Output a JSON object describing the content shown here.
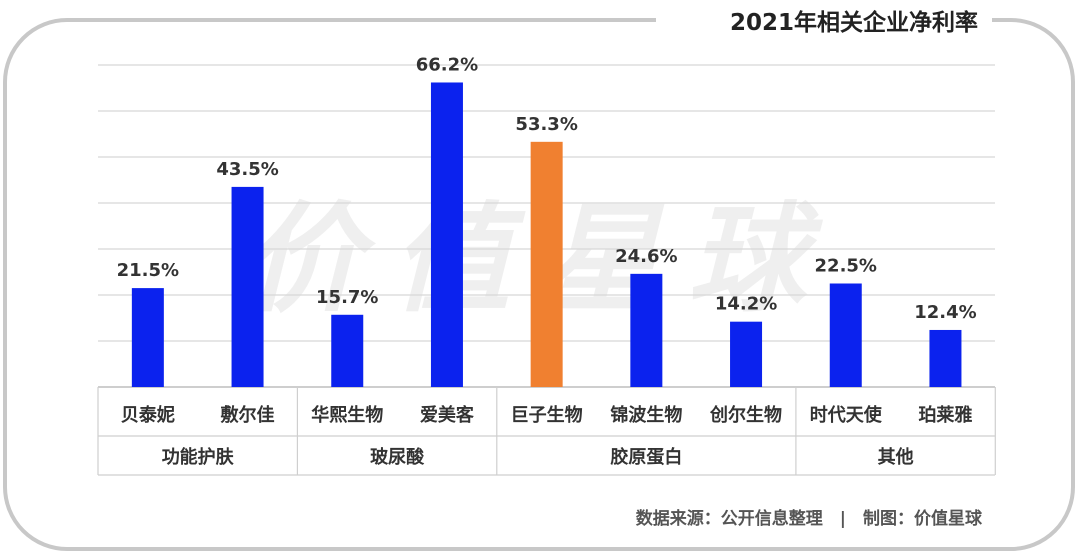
{
  "title": "2021年相关企业净利率",
  "watermark": "价值星球",
  "footer": "数据来源：公开信息整理　|　制图：价值星球",
  "colors": {
    "bar": "#0b22ee",
    "highlight": "#f08030",
    "grid": "#d7d7d7",
    "text": "#333333",
    "frame": "#c8c8c8"
  },
  "chart_data": {
    "type": "bar",
    "categories": [
      "贝泰妮",
      "敷尔佳",
      "华熙生物",
      "爱美客",
      "巨子生物",
      "锦波生物",
      "创尔生物",
      "时代天使",
      "珀莱雅"
    ],
    "values": [
      21.5,
      43.5,
      15.7,
      66.2,
      53.3,
      24.6,
      14.2,
      22.5,
      12.4
    ],
    "value_labels": [
      "21.5%",
      "43.5%",
      "15.7%",
      "66.2%",
      "53.3%",
      "24.6%",
      "14.2%",
      "22.5%",
      "12.4%"
    ],
    "highlight_index": 4,
    "groups": [
      {
        "name": "功能护肤",
        "categories": [
          "贝泰妮",
          "敷尔佳"
        ]
      },
      {
        "name": "玻尿酸",
        "categories": [
          "华熙生物",
          "爱美客"
        ]
      },
      {
        "name": "胶原蛋白",
        "categories": [
          "巨子生物",
          "锦波生物",
          "创尔生物"
        ]
      },
      {
        "name": "其他",
        "categories": [
          "时代天使",
          "珀莱雅"
        ]
      }
    ],
    "title": "2021年相关企业净利率",
    "xlabel": "",
    "ylabel": "",
    "ylim": [
      0,
      70
    ],
    "grid": true,
    "legend": "none"
  }
}
